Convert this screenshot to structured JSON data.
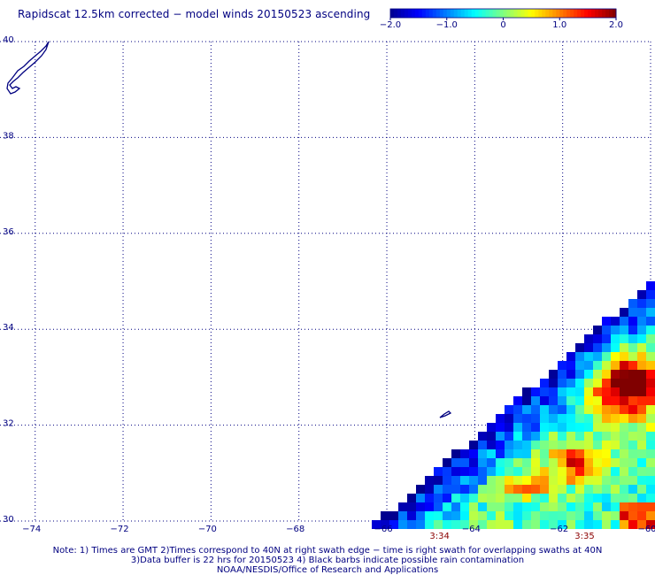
{
  "title": "Rapidscat 12.5km corrected − model winds 20150523 ascending",
  "colorbar": {
    "ticks": [
      "−2.0",
      "−1.0",
      "0",
      "1.0",
      "2.0"
    ],
    "values": [
      -2.0,
      -1.0,
      0,
      1.0,
      2.0
    ],
    "colors": [
      "#00008f",
      "#0000ff",
      "#0080ff",
      "#00ffff",
      "#80ff80",
      "#ffff00",
      "#ff8000",
      "#ff0000",
      "#800000"
    ]
  },
  "axes": {
    "x_ticks": [
      "−74",
      "−72",
      "−70",
      "−68",
      "−66",
      "−64",
      "−62",
      "−60"
    ],
    "y_ticks": [
      "40",
      "38",
      "36",
      "34",
      "32",
      "30"
    ],
    "lon_range": [
      -74.8,
      -60
    ],
    "lat_range": [
      30,
      40
    ],
    "grid": true
  },
  "time_labels": [
    {
      "text": "3:34",
      "lon": -64.8
    },
    {
      "text": "3:35",
      "lon": -61.5
    }
  ],
  "notes": [
    "Note: 1) Times are GMT 2)Times correspond to 40N at right swath edge − time is right swath for overlapping swaths at 40N",
    "3)Data buffer is 22 hrs for 20150523 4) Black barbs indicate possible rain contamination",
    "NOAA/NESDIS/Office of Research and Applications"
  ],
  "swath": {
    "description_values": "gridded wind difference (m/s), range -2.0 to 2.0",
    "edge_top_lat": 35.0,
    "edge_bottom_lon": -66.2
  }
}
